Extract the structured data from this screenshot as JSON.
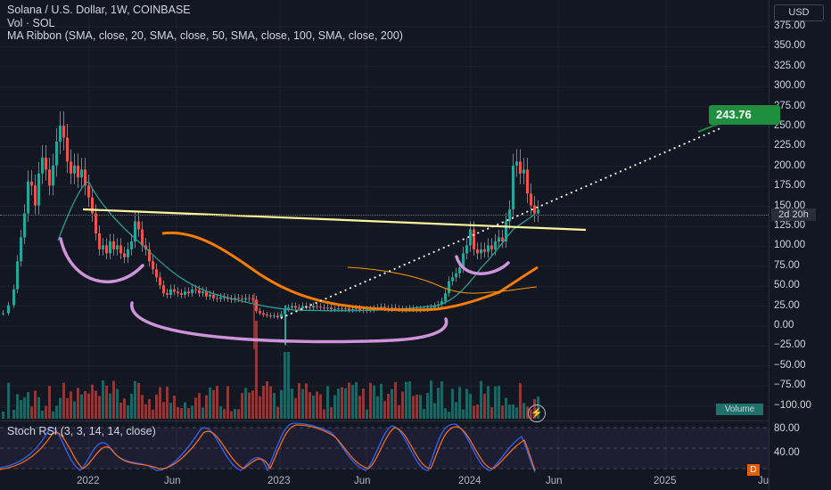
{
  "legend": {
    "title": "Solana / U.S. Dollar, 1W, COINBASE",
    "vol": "Vol · SOL",
    "ma": "MA Ribbon (SMA, close, 20, SMA, close, 50, SMA, close, 100, SMA, close, 200)"
  },
  "currency": "USD",
  "price_ticks": [
    "375.00",
    "350.00",
    "325.00",
    "300.00",
    "275.00",
    "250.00",
    "225.00",
    "200.00",
    "175.00",
    "150.00",
    "125.00",
    "100.00",
    "75.00",
    "50.00",
    "25.00",
    "0.00",
    "−25.00",
    "−50.00",
    "−75.00",
    "−100.00"
  ],
  "target_tag": "243.76",
  "countdown": "2d 20h",
  "volume_tag": "Volume",
  "rsi": {
    "title": "Stoch RSI (3, 3, 14, 14, close)",
    "ticks": [
      "80.00",
      "40.00"
    ],
    "flag": "D"
  },
  "time_ticks": [
    "2022",
    "Jun",
    "2023",
    "Jun",
    "2024",
    "Jun",
    "2025",
    "Ju"
  ],
  "colors": {
    "up": "#26a69a",
    "down": "#ef5350",
    "ma20": "#26a69a",
    "ma50": "#f57c00",
    "ma100": "#ff9800",
    "yellow_line": "#fff59d",
    "annotation": "#ce93d8",
    "rsi_k": "#2962ff",
    "rsi_d": "#ff6d00"
  },
  "icons": {
    "lightning": "lightning-icon"
  }
}
